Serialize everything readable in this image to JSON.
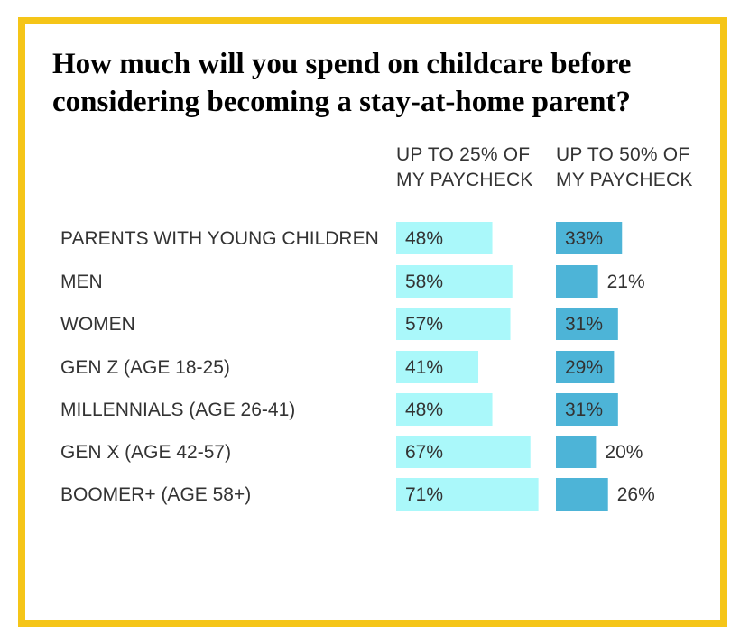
{
  "title": "How much will you spend on childcare before considering becoming a stay-at-home parent?",
  "colors": {
    "frame": "#f5c518",
    "series_a": "#aaf8fa",
    "series_b": "#4db4d7",
    "text": "#333333"
  },
  "chart_data": {
    "type": "bar",
    "orientation": "horizontal",
    "title": "How much will you spend on childcare before considering becoming a stay-at-home parent?",
    "value_unit": "%",
    "categories": [
      "PARENTS WITH YOUNG CHILDREN",
      "MEN",
      "WOMEN",
      "GEN Z (AGE 18-25)",
      "MILLENNIALS (AGE 26-41)",
      "GEN X (AGE 42-57)",
      "BOOMER+ (AGE 58+)"
    ],
    "groups": [
      [
        0
      ],
      [
        1,
        2
      ],
      [
        3,
        4,
        5,
        6
      ]
    ],
    "series": [
      {
        "name_lines": [
          "UP TO 25% OF",
          "MY PAYCHECK"
        ],
        "color": "#aaf8fa",
        "values": [
          48,
          58,
          57,
          41,
          48,
          67,
          71
        ]
      },
      {
        "name_lines": [
          "UP TO 50% OF",
          "MY PAYCHECK"
        ],
        "color": "#4db4d7",
        "values": [
          33,
          21,
          31,
          29,
          31,
          20,
          26
        ]
      }
    ],
    "grid": false,
    "legend": "column headers above bars"
  }
}
